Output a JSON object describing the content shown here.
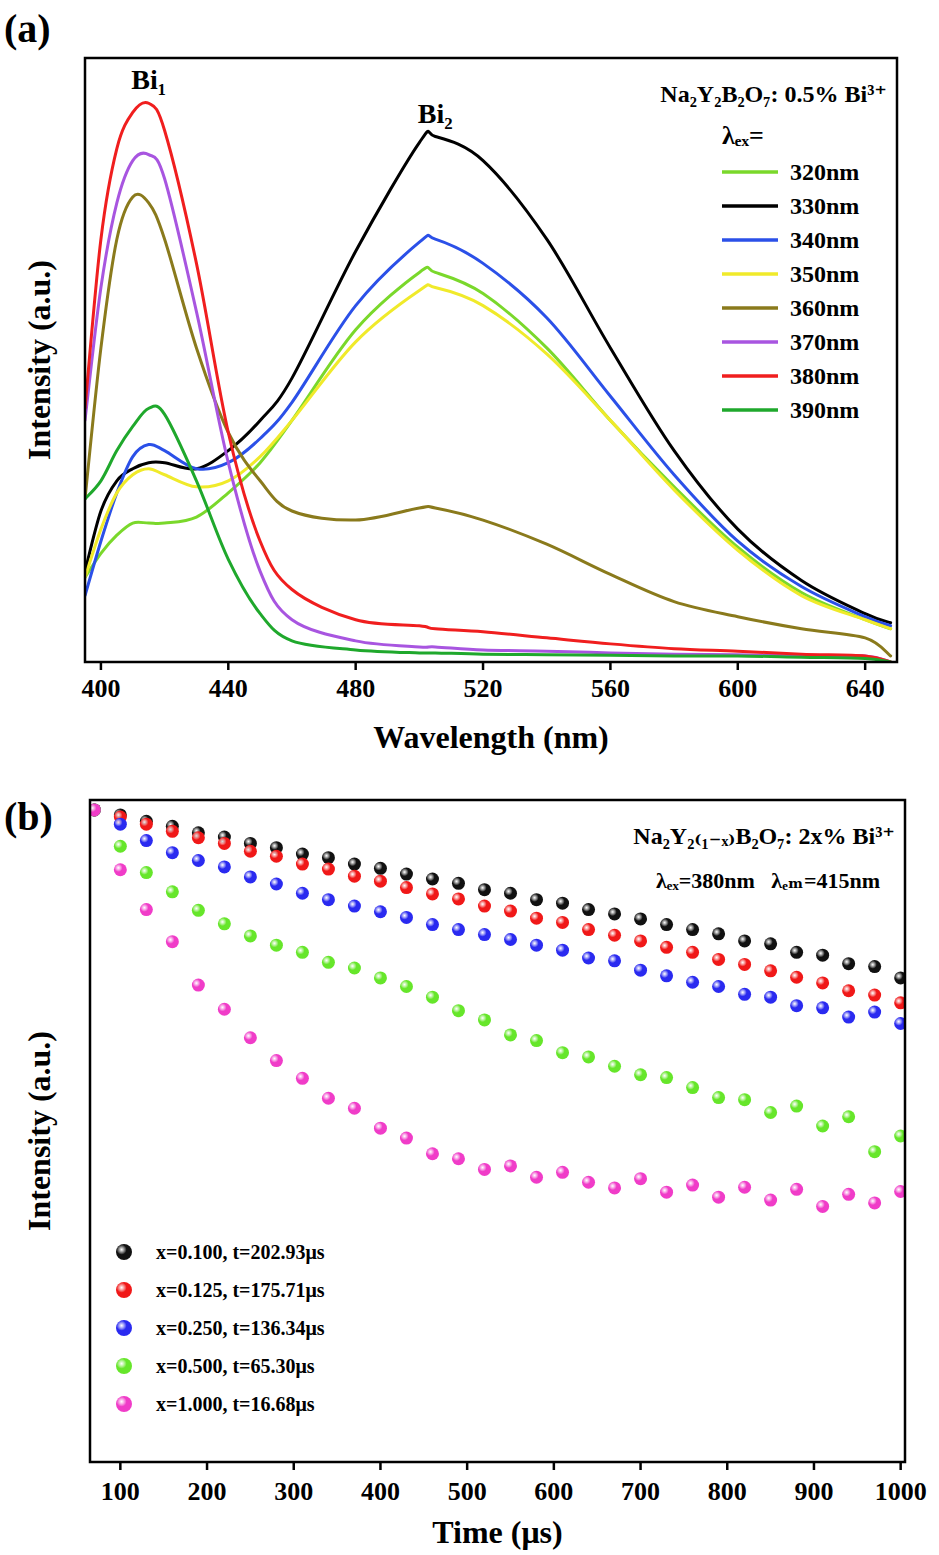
{
  "chart_data": [
    {
      "type": "line",
      "panel_label": "(a)",
      "title": "Na₂Y₂B₂O₇: 0.5% Bi³⁺",
      "legend_title": "λₑₓ=",
      "x_label": "Wavelength (nm)",
      "y_label": "Intensity (a.u.)",
      "annotations": [
        {
          "text": "Bi₁",
          "x": 415
        },
        {
          "text": "Bi₂",
          "x": 505
        }
      ],
      "x": [
        395,
        400,
        405,
        410,
        415,
        420,
        430,
        440,
        450,
        460,
        480,
        500,
        505,
        520,
        540,
        560,
        580,
        600,
        620,
        640,
        648
      ],
      "xlim": [
        395,
        650
      ],
      "xticks": [
        400,
        440,
        480,
        520,
        560,
        600,
        640
      ],
      "ylim": [
        0,
        100
      ],
      "yticks": [],
      "tick_labels": "x",
      "legend": "upper right",
      "line_style": "solid",
      "series": [
        {
          "name": "320nm",
          "color": "#7ad82b",
          "values": [
            14,
            18,
            21,
            23,
            23,
            23,
            24,
            28,
            33,
            40,
            55,
            64.5,
            64.5,
            61,
            52,
            40,
            29,
            19,
            11.5,
            7,
            5.5
          ]
        },
        {
          "name": "330nm",
          "color": "#000000",
          "values": [
            15,
            25,
            30,
            32,
            33,
            33,
            32,
            35,
            40,
            47,
            68,
            86,
            87,
            83,
            70,
            52,
            35,
            22,
            13.5,
            8,
            6.5
          ]
        },
        {
          "name": "340nm",
          "color": "#2b50e8",
          "values": [
            11,
            20,
            28,
            34,
            36,
            35,
            32,
            33,
            37,
            43,
            59,
            69.5,
            70,
            66,
            57,
            44,
            31,
            20,
            12.5,
            7.5,
            6
          ]
        },
        {
          "name": "350nm",
          "color": "#f0ea2a",
          "values": [
            14,
            22,
            28,
            31,
            32,
            31,
            29,
            30,
            34,
            40,
            53,
            61.5,
            62,
            59,
            51,
            40,
            28.5,
            18.5,
            11,
            7,
            5.5
          ]
        },
        {
          "name": "360nm",
          "color": "#8a7a1c",
          "values": [
            27,
            52,
            70,
            77,
            76,
            70,
            52,
            38,
            30,
            25,
            23.5,
            25.5,
            25.5,
            23.5,
            19.5,
            14.5,
            10,
            7.5,
            5.5,
            4,
            1
          ]
        },
        {
          "name": "370nm",
          "color": "#a855e0",
          "values": [
            40,
            62,
            76,
            83,
            84,
            80,
            58,
            33,
            15,
            7,
            3.5,
            2.5,
            2.5,
            2,
            1.8,
            1.5,
            1.3,
            1.2,
            1,
            1,
            0
          ]
        },
        {
          "name": "380nm",
          "color": "#f01e1e",
          "values": [
            42,
            70,
            85,
            91,
            92.5,
            88,
            66,
            38,
            20,
            12,
            7,
            6,
            5.5,
            5,
            4,
            3,
            2.2,
            1.8,
            1.3,
            1,
            0
          ]
        },
        {
          "name": "390nm",
          "color": "#1fa82c",
          "values": [
            27,
            30,
            35,
            39,
            42,
            41,
            30,
            17,
            8,
            3.5,
            2,
            1.5,
            1.5,
            1.3,
            1.2,
            1.1,
            1,
            1,
            0.8,
            0.6,
            0
          ]
        }
      ]
    },
    {
      "type": "scatter",
      "panel_label": "(b)",
      "title": "Na₂Y₂₍₁₋ₓ₎B₂O₇: 2x% Bi³⁺",
      "subtitle": "λₑₓ=380nm   λₑₘ=415nm",
      "x_label": "Time (μs)",
      "y_label": "Intensity (a.u.)",
      "x": [
        70,
        100,
        130,
        160,
        190,
        220,
        250,
        280,
        310,
        340,
        370,
        400,
        430,
        460,
        490,
        520,
        550,
        580,
        610,
        640,
        670,
        700,
        730,
        760,
        790,
        820,
        850,
        880,
        910,
        940,
        970,
        1000
      ],
      "xlim": [
        65,
        1005
      ],
      "xticks": [
        100,
        200,
        300,
        400,
        500,
        600,
        700,
        800,
        900,
        1000
      ],
      "ylim": [
        7,
        100
      ],
      "yticks": [],
      "tick_labels": "x",
      "legend": "lower left",
      "marker": "circle",
      "series": [
        {
          "name": "x=0.100, t=202.93μs",
          "color": "#111111",
          "values": [
            98.6,
            97.9,
            97.0,
            96.3,
            95.4,
            94.8,
            93.9,
            93.3,
            92.4,
            91.9,
            91.0,
            90.4,
            89.6,
            88.9,
            88.3,
            87.4,
            86.9,
            86.0,
            85.5,
            84.6,
            84.0,
            83.3,
            82.5,
            81.8,
            81.2,
            80.2,
            79.8,
            78.6,
            78.2,
            77.0,
            76.6,
            75.0
          ]
        },
        {
          "name": "x=0.125, t=175.71μs",
          "color": "#f01818",
          "values": [
            98.6,
            97.6,
            96.6,
            95.6,
            94.7,
            93.9,
            92.8,
            92.1,
            91.0,
            90.3,
            89.3,
            88.6,
            87.7,
            86.8,
            86.1,
            85.1,
            84.4,
            83.4,
            82.8,
            81.8,
            81.0,
            80.2,
            79.3,
            78.6,
            77.6,
            76.9,
            76.0,
            75.1,
            74.3,
            73.2,
            72.6,
            71.5
          ]
        },
        {
          "name": "x=0.250, t=136.34μs",
          "color": "#2a2af0",
          "values": [
            98.6,
            96.6,
            94.3,
            92.6,
            91.5,
            90.6,
            89.2,
            88.2,
            86.9,
            86.0,
            85.1,
            84.3,
            83.5,
            82.5,
            81.8,
            81.1,
            80.4,
            79.6,
            78.9,
            77.8,
            77.4,
            76.1,
            75.3,
            74.4,
            73.8,
            72.7,
            72.3,
            71.1,
            70.8,
            69.5,
            70.2,
            68.6
          ]
        },
        {
          "name": "x=0.500, t=65.30μs",
          "color": "#66e62a",
          "values": [
            98.6,
            93.5,
            89.8,
            87.1,
            84.5,
            82.6,
            80.9,
            79.6,
            78.6,
            77.2,
            76.4,
            75.0,
            73.8,
            72.3,
            70.4,
            69.1,
            67.0,
            66.2,
            64.5,
            63.9,
            62.6,
            61.4,
            61.0,
            59.6,
            58.2,
            57.9,
            56.1,
            57.0,
            54.2,
            55.5,
            50.6,
            52.8
          ]
        },
        {
          "name": "x=1.000, t=16.68μs",
          "color": "#f03cc8",
          "values": [
            98.6,
            90.2,
            84.6,
            80.1,
            74.0,
            70.6,
            66.6,
            63.4,
            60.9,
            58.1,
            56.7,
            53.9,
            52.5,
            50.3,
            49.6,
            48.1,
            48.6,
            47.0,
            47.7,
            46.3,
            45.5,
            46.8,
            44.9,
            45.9,
            44.2,
            45.6,
            43.8,
            45.3,
            42.9,
            44.6,
            43.4,
            45.0
          ]
        }
      ]
    }
  ]
}
